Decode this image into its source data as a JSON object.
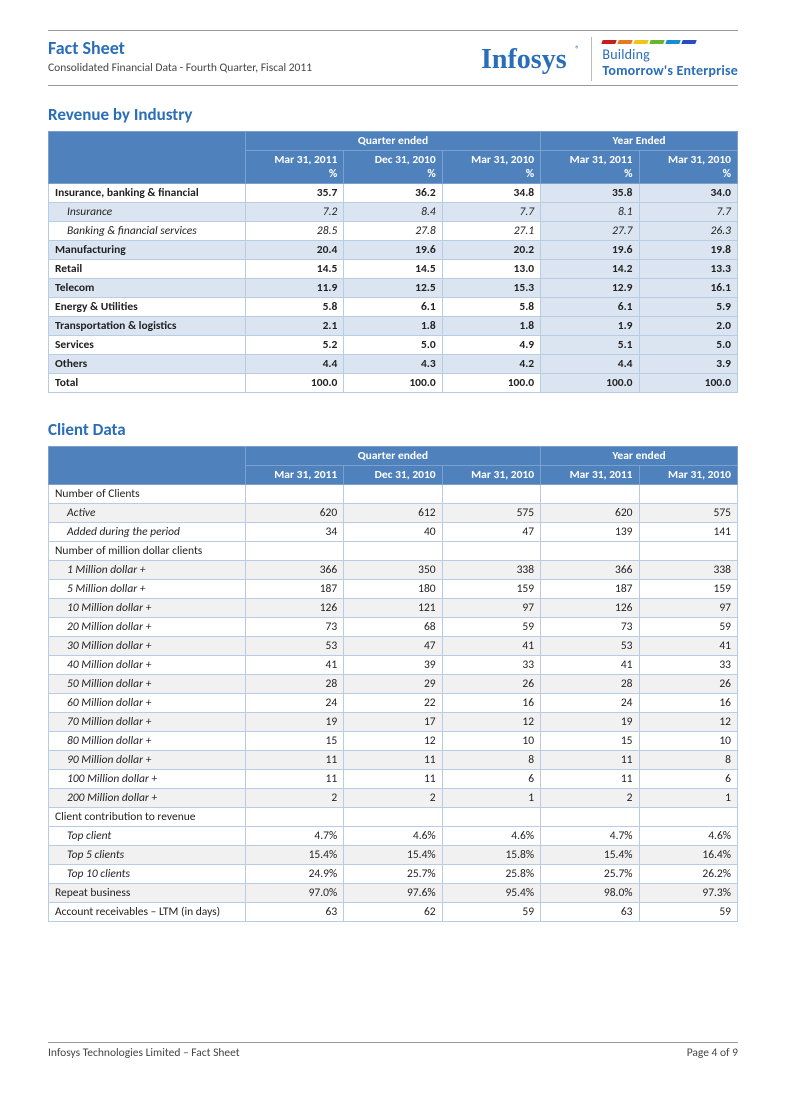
{
  "header": {
    "title": "Fact Sheet",
    "subtitle": "Consolidated Financial Data - Fourth Quarter, Fiscal 2011",
    "logo_text": "Infosys",
    "tagline_line1": "Building",
    "tagline_line2": "Tomorrow's Enterprise",
    "stripe_colors": [
      "#c61e1e",
      "#e87a1e",
      "#f0c419",
      "#6ab52e",
      "#158fcf",
      "#2a4cc0"
    ]
  },
  "revenue": {
    "section_title": "Revenue by Industry",
    "group1_label": "Quarter ended",
    "group2_label": "Year Ended",
    "cols": [
      "Mar 31, 2011\n%",
      "Dec 31, 2010\n%",
      "Mar 31, 2010\n%",
      "Mar 31, 2011\n%",
      "Mar 31, 2010\n%"
    ],
    "col_h1": [
      "Mar 31, 2011",
      "Dec 31, 2010",
      "Mar 31, 2010",
      "Mar 31, 2011",
      "Mar 31, 2010"
    ],
    "pct_label": "%",
    "rows": [
      {
        "label": "Insurance, banking & financial",
        "lvl": 0,
        "bold": true,
        "vals": [
          "35.7",
          "36.2",
          "34.8",
          "35.8",
          "34.0"
        ]
      },
      {
        "label": "Insurance",
        "lvl": 1,
        "italic": true,
        "vals": [
          "7.2",
          "8.4",
          "7.7",
          "8.1",
          "7.7"
        ]
      },
      {
        "label": "Banking & financial services",
        "lvl": 1,
        "italic": true,
        "vals": [
          "28.5",
          "27.8",
          "27.1",
          "27.7",
          "26.3"
        ]
      },
      {
        "label": "Manufacturing",
        "lvl": 0,
        "bold": true,
        "vals": [
          "20.4",
          "19.6",
          "20.2",
          "19.6",
          "19.8"
        ]
      },
      {
        "label": "Retail",
        "lvl": 0,
        "bold": true,
        "vals": [
          "14.5",
          "14.5",
          "13.0",
          "14.2",
          "13.3"
        ]
      },
      {
        "label": "Telecom",
        "lvl": 0,
        "bold": true,
        "vals": [
          "11.9",
          "12.5",
          "15.3",
          "12.9",
          "16.1"
        ]
      },
      {
        "label": "Energy & Utilities",
        "lvl": 0,
        "bold": true,
        "vals": [
          "5.8",
          "6.1",
          "5.8",
          "6.1",
          "5.9"
        ]
      },
      {
        "label": "Transportation & logistics",
        "lvl": 0,
        "bold": true,
        "vals": [
          "2.1",
          "1.8",
          "1.8",
          "1.9",
          "2.0"
        ]
      },
      {
        "label": "Services",
        "lvl": 0,
        "bold": true,
        "vals": [
          "5.2",
          "5.0",
          "4.9",
          "5.1",
          "5.0"
        ]
      },
      {
        "label": "Others",
        "lvl": 0,
        "bold": true,
        "vals": [
          "4.4",
          "4.3",
          "4.2",
          "4.4",
          "3.9"
        ]
      },
      {
        "label": "Total",
        "lvl": 0,
        "bold": true,
        "total": true,
        "vals": [
          "100.0",
          "100.0",
          "100.0",
          "100.0",
          "100.0"
        ]
      }
    ]
  },
  "client": {
    "section_title": "Client Data",
    "group1_label": "Quarter ended",
    "group2_label": "Year ended",
    "col_h1": [
      "Mar 31, 2011",
      "Dec 31, 2010",
      "Mar 31, 2010",
      "Mar 31, 2011",
      "Mar 31, 2010"
    ],
    "rows": [
      {
        "label": "Number of Clients",
        "lvl": 0,
        "header": true,
        "vals": [
          "",
          "",
          "",
          "",
          ""
        ]
      },
      {
        "label": "Active",
        "lvl": 1,
        "vals": [
          "620",
          "612",
          "575",
          "620",
          "575"
        ]
      },
      {
        "label": "Added during the period",
        "lvl": 1,
        "vals": [
          "34",
          "40",
          "47",
          "139",
          "141"
        ]
      },
      {
        "label": "Number of million dollar clients",
        "lvl": 0,
        "header": true,
        "vals": [
          "",
          "",
          "",
          "",
          ""
        ]
      },
      {
        "label": "1 Million dollar +",
        "lvl": 1,
        "vals": [
          "366",
          "350",
          "338",
          "366",
          "338"
        ]
      },
      {
        "label": "5 Million dollar +",
        "lvl": 1,
        "vals": [
          "187",
          "180",
          "159",
          "187",
          "159"
        ]
      },
      {
        "label": "10 Million dollar +",
        "lvl": 1,
        "vals": [
          "126",
          "121",
          "97",
          "126",
          "97"
        ]
      },
      {
        "label": "20 Million dollar +",
        "lvl": 1,
        "vals": [
          "73",
          "68",
          "59",
          "73",
          "59"
        ]
      },
      {
        "label": "30 Million dollar +",
        "lvl": 1,
        "vals": [
          "53",
          "47",
          "41",
          "53",
          "41"
        ]
      },
      {
        "label": "40 Million dollar +",
        "lvl": 1,
        "vals": [
          "41",
          "39",
          "33",
          "41",
          "33"
        ]
      },
      {
        "label": "50 Million dollar +",
        "lvl": 1,
        "vals": [
          "28",
          "29",
          "26",
          "28",
          "26"
        ]
      },
      {
        "label": "60 Million dollar +",
        "lvl": 1,
        "vals": [
          "24",
          "22",
          "16",
          "24",
          "16"
        ]
      },
      {
        "label": "70 Million dollar +",
        "lvl": 1,
        "vals": [
          "19",
          "17",
          "12",
          "19",
          "12"
        ]
      },
      {
        "label": "80 Million dollar +",
        "lvl": 1,
        "vals": [
          "15",
          "12",
          "10",
          "15",
          "10"
        ]
      },
      {
        "label": "90 Million dollar +",
        "lvl": 1,
        "vals": [
          "11",
          "11",
          "8",
          "11",
          "8"
        ]
      },
      {
        "label": "100 Million dollar +",
        "lvl": 1,
        "vals": [
          "11",
          "11",
          "6",
          "11",
          "6"
        ]
      },
      {
        "label": "200 Million dollar +",
        "lvl": 1,
        "vals": [
          "2",
          "2",
          "1",
          "2",
          "1"
        ]
      },
      {
        "label": "Client contribution to revenue",
        "lvl": 0,
        "header": true,
        "vals": [
          "",
          "",
          "",
          "",
          ""
        ]
      },
      {
        "label": "Top client",
        "lvl": 1,
        "vals": [
          "4.7%",
          "4.6%",
          "4.6%",
          "4.7%",
          "4.6%"
        ]
      },
      {
        "label": "Top 5 clients",
        "lvl": 1,
        "vals": [
          "15.4%",
          "15.4%",
          "15.8%",
          "15.4%",
          "16.4%"
        ]
      },
      {
        "label": "Top 10 clients",
        "lvl": 1,
        "vals": [
          "24.9%",
          "25.7%",
          "25.8%",
          "25.7%",
          "26.2%"
        ]
      },
      {
        "label": "Repeat business",
        "lvl": 0,
        "vals": [
          "97.0%",
          "97.6%",
          "95.4%",
          "98.0%",
          "97.3%"
        ]
      },
      {
        "label": "Account receivables – LTM (in days)",
        "lvl": 0,
        "vals": [
          "63",
          "62",
          "59",
          "63",
          "59"
        ]
      }
    ]
  },
  "footer": {
    "left": "Infosys Technologies Limited – Fact Sheet",
    "right": "Page 4 of 9"
  },
  "style": {
    "header_bg": "#4f81bd",
    "zebra_bg": "#dbe5f1",
    "border_color": "#b8cce4",
    "title_color": "#2a6db8"
  }
}
